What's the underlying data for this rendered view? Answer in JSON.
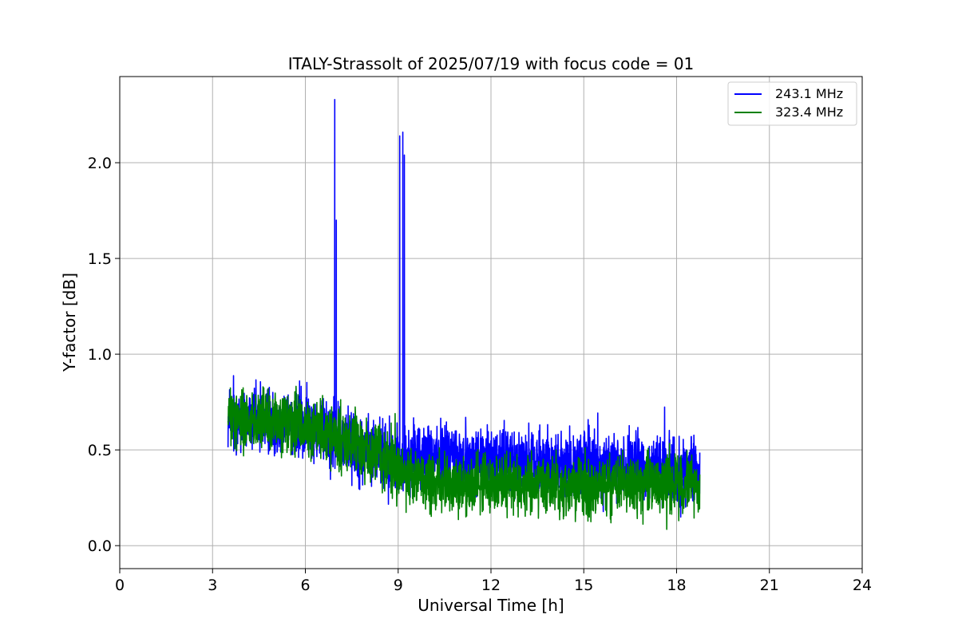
{
  "chart_data": {
    "type": "line",
    "title": "ITALY-Strassolt of 2025/07/19 with focus code = 01",
    "xlabel": "Universal Time [h]",
    "ylabel": "Y-factor [dB]",
    "xlim": [
      0,
      24
    ],
    "ylim": [
      -0.12,
      2.45
    ],
    "xticks": [
      0,
      3,
      6,
      9,
      12,
      15,
      18,
      21,
      24
    ],
    "xtick_labels": [
      "0",
      "3",
      "6",
      "9",
      "12",
      "15",
      "18",
      "21",
      "24"
    ],
    "yticks": [
      0.0,
      0.5,
      1.0,
      1.5,
      2.0
    ],
    "ytick_labels": [
      "0.0",
      "0.5",
      "1.0",
      "1.5",
      "2.0"
    ],
    "grid": true,
    "legend_position": "top-right",
    "series": [
      {
        "name": "243.1 MHz",
        "color": "#0000ff",
        "x_range": [
          3.5,
          18.75
        ],
        "trend": [
          [
            3.5,
            0.67
          ],
          [
            6,
            0.63
          ],
          [
            8,
            0.5
          ],
          [
            9,
            0.44
          ],
          [
            10,
            0.47
          ],
          [
            12,
            0.45
          ],
          [
            15,
            0.43
          ],
          [
            18.75,
            0.38
          ]
        ],
        "noise_amplitude": 0.2,
        "spikes": [
          {
            "x": 6.95,
            "y": 2.33
          },
          {
            "x": 7.0,
            "y": 1.7
          },
          {
            "x": 9.05,
            "y": 2.14
          },
          {
            "x": 9.15,
            "y": 2.16
          },
          {
            "x": 9.2,
            "y": 2.04
          }
        ]
      },
      {
        "name": "323.4 MHz",
        "color": "#008000",
        "x_range": [
          3.5,
          18.75
        ],
        "trend": [
          [
            3.5,
            0.67
          ],
          [
            6,
            0.62
          ],
          [
            8,
            0.5
          ],
          [
            9,
            0.4
          ],
          [
            10,
            0.33
          ],
          [
            12,
            0.32
          ],
          [
            15,
            0.31
          ],
          [
            18.75,
            0.32
          ]
        ],
        "noise_amplitude": 0.18,
        "spikes": []
      }
    ]
  }
}
